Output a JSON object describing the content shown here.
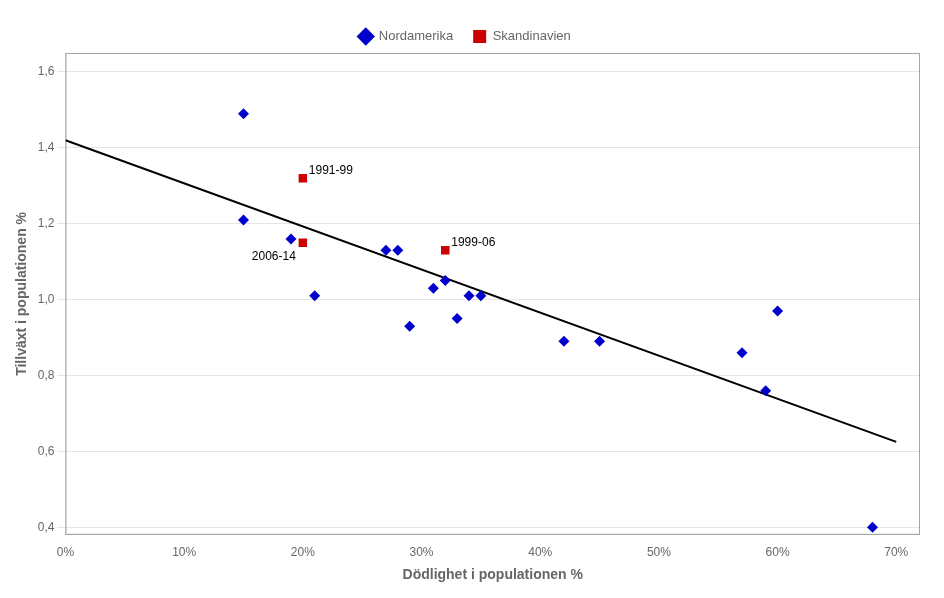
{
  "chart_data": {
    "type": "scatter",
    "xlabel": "Dödlighet i populationen %",
    "ylabel": "Tillväxt i populationen %",
    "series": [
      {
        "name": "Nordamerika",
        "color": "#0000CC",
        "marker": "diamond",
        "values": [
          [
            0.15,
            1.49
          ],
          [
            0.15,
            1.21
          ],
          [
            0.19,
            1.16
          ],
          [
            0.21,
            1.01
          ],
          [
            0.27,
            1.13
          ],
          [
            0.28,
            1.13
          ],
          [
            0.29,
            0.93
          ],
          [
            0.31,
            1.03
          ],
          [
            0.32,
            1.05
          ],
          [
            0.33,
            0.95
          ],
          [
            0.34,
            1.01
          ],
          [
            0.35,
            1.01
          ],
          [
            0.42,
            0.89
          ],
          [
            0.45,
            0.89
          ],
          [
            0.57,
            0.86
          ],
          [
            0.59,
            0.76
          ],
          [
            0.6,
            0.97
          ],
          [
            0.68,
            0.4
          ]
        ]
      },
      {
        "name": "Skandinavien",
        "color": "#CC0000",
        "marker": "square",
        "values": [
          [
            0.2,
            1.32
          ],
          [
            0.2,
            1.15
          ],
          [
            0.32,
            1.13
          ]
        ]
      }
    ],
    "trendline": {
      "x": [
        0.0,
        0.7
      ],
      "y": [
        1.42,
        0.625
      ],
      "color": "#000000"
    },
    "annotations": [
      {
        "text": "1991-99",
        "x": 0.2,
        "y": 1.32
      },
      {
        "text": "2006-14",
        "x": 0.2,
        "y": 1.15
      },
      {
        "text": "1999-06",
        "x": 0.32,
        "y": 1.13
      }
    ],
    "xlim": [
      0.0,
      0.72
    ],
    "ylim": [
      0.38,
      1.65
    ],
    "xticks": [
      {
        "value": 0.0,
        "label": "0%"
      },
      {
        "value": 0.1,
        "label": "10%"
      },
      {
        "value": 0.2,
        "label": "20%"
      },
      {
        "value": 0.3,
        "label": "30%"
      },
      {
        "value": 0.4,
        "label": "40%"
      },
      {
        "value": 0.5,
        "label": "50%"
      },
      {
        "value": 0.6,
        "label": "60%"
      },
      {
        "value": 0.7,
        "label": "70%"
      }
    ],
    "yticks": [
      {
        "value": 0.4,
        "label": "0,4"
      },
      {
        "value": 0.6,
        "label": "0,6"
      },
      {
        "value": 0.8,
        "label": "0,8"
      },
      {
        "value": 1.0,
        "label": "1,0"
      },
      {
        "value": 1.2,
        "label": "1,2"
      },
      {
        "value": 1.4,
        "label": "1,4"
      },
      {
        "value": 1.6,
        "label": "1,6"
      }
    ],
    "grid": "y",
    "legend": "top"
  }
}
